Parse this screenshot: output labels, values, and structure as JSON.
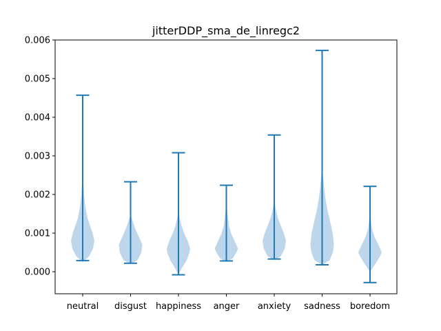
{
  "chart_data": {
    "type": "violin",
    "title": "jitterDDP_sma_de_linregc2",
    "xlabel": "",
    "ylabel": "",
    "ylim": [
      -0.00057,
      0.006
    ],
    "yticks": [
      0.0,
      0.001,
      0.002,
      0.003,
      0.004,
      0.005,
      0.006
    ],
    "ytick_labels": [
      "0.000",
      "0.001",
      "0.002",
      "0.003",
      "0.004",
      "0.005",
      "0.006"
    ],
    "grid": false,
    "color": "#1f77b4",
    "body_color": "#b9d4ea",
    "categories": [
      "neutral",
      "disgust",
      "happiness",
      "anger",
      "anxiety",
      "sadness",
      "boredom"
    ],
    "violins": [
      {
        "category": "neutral",
        "min": 0.00029,
        "max": 0.00457,
        "body_bottom": 0.00025,
        "body_top": 0.0026,
        "profile": [
          [
            0.00025,
            0.0
          ],
          [
            0.0004,
            0.55
          ],
          [
            0.0006,
            0.88
          ],
          [
            0.0008,
            1.0
          ],
          [
            0.001,
            0.85
          ],
          [
            0.0012,
            0.62
          ],
          [
            0.0014,
            0.4
          ],
          [
            0.0017,
            0.22
          ],
          [
            0.002,
            0.12
          ],
          [
            0.0023,
            0.06
          ],
          [
            0.0026,
            0.0
          ]
        ]
      },
      {
        "category": "disgust",
        "min": 0.00022,
        "max": 0.00233,
        "body_bottom": 0.0002,
        "body_top": 0.0015,
        "profile": [
          [
            0.0002,
            0.0
          ],
          [
            0.0003,
            0.6
          ],
          [
            0.0005,
            0.92
          ],
          [
            0.0007,
            1.0
          ],
          [
            0.0009,
            0.72
          ],
          [
            0.0011,
            0.42
          ],
          [
            0.0013,
            0.18
          ],
          [
            0.0015,
            0.0
          ]
        ]
      },
      {
        "category": "happiness",
        "min": -8e-05,
        "max": 0.00308,
        "body_bottom": -8e-05,
        "body_top": 0.0016,
        "profile": [
          [
            -8e-05,
            0.0
          ],
          [
            0.0001,
            0.3
          ],
          [
            0.0003,
            0.7
          ],
          [
            0.0005,
            0.95
          ],
          [
            0.0006,
            1.0
          ],
          [
            0.0008,
            0.78
          ],
          [
            0.001,
            0.48
          ],
          [
            0.0012,
            0.25
          ],
          [
            0.0014,
            0.1
          ],
          [
            0.0016,
            0.0
          ]
        ]
      },
      {
        "category": "anger",
        "min": 0.00028,
        "max": 0.00224,
        "body_bottom": 0.00025,
        "body_top": 0.0018,
        "profile": [
          [
            0.00025,
            0.0
          ],
          [
            0.00035,
            0.55
          ],
          [
            0.0005,
            0.85
          ],
          [
            0.0006,
            1.0
          ],
          [
            0.0008,
            0.7
          ],
          [
            0.001,
            0.4
          ],
          [
            0.0012,
            0.22
          ],
          [
            0.0015,
            0.1
          ],
          [
            0.0018,
            0.0
          ]
        ]
      },
      {
        "category": "anxiety",
        "min": 0.00033,
        "max": 0.00354,
        "body_bottom": 0.0003,
        "body_top": 0.00185,
        "profile": [
          [
            0.0003,
            0.0
          ],
          [
            0.0004,
            0.55
          ],
          [
            0.0006,
            0.9
          ],
          [
            0.0008,
            1.0
          ],
          [
            0.001,
            0.82
          ],
          [
            0.0012,
            0.55
          ],
          [
            0.0014,
            0.3
          ],
          [
            0.0016,
            0.14
          ],
          [
            0.00185,
            0.0
          ]
        ]
      },
      {
        "category": "sadness",
        "min": 0.00018,
        "max": 0.00573,
        "body_bottom": 0.00018,
        "body_top": 0.0028,
        "profile": [
          [
            0.00018,
            0.0
          ],
          [
            0.0003,
            0.65
          ],
          [
            0.0005,
            0.92
          ],
          [
            0.0007,
            1.0
          ],
          [
            0.001,
            0.9
          ],
          [
            0.0013,
            0.68
          ],
          [
            0.0016,
            0.45
          ],
          [
            0.0019,
            0.28
          ],
          [
            0.0022,
            0.16
          ],
          [
            0.0025,
            0.07
          ],
          [
            0.0028,
            0.0
          ]
        ]
      },
      {
        "category": "boredom",
        "min": -0.00028,
        "max": 0.00221,
        "body_bottom": 0.0,
        "body_top": 0.00165,
        "profile": [
          [
            0.0,
            0.0
          ],
          [
            0.0002,
            0.45
          ],
          [
            0.0004,
            0.85
          ],
          [
            0.0005,
            1.0
          ],
          [
            0.0007,
            0.72
          ],
          [
            0.0009,
            0.38
          ],
          [
            0.0011,
            0.18
          ],
          [
            0.0013,
            0.09
          ],
          [
            0.00165,
            0.0
          ]
        ]
      }
    ]
  }
}
